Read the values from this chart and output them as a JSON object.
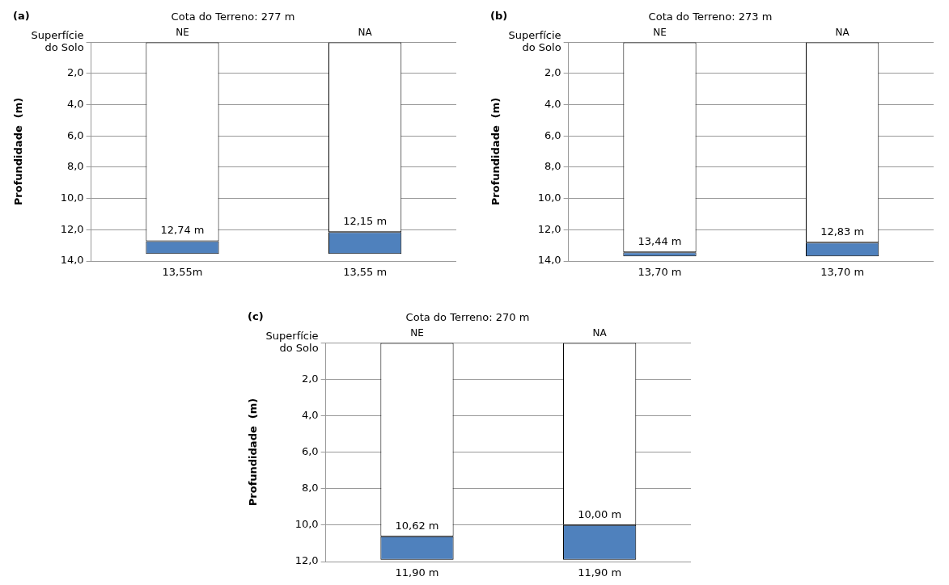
{
  "chart_data": [
    {
      "type": "bar",
      "stacked": true,
      "title": "Cota do Terreno: 277 m",
      "ylabel": "Profundidade  (m)",
      "annotations": [
        "(a)"
      ],
      "categories": [
        "NE",
        "NA"
      ],
      "grid": "y",
      "ylim": [
        14,
        0
      ],
      "yticks": [
        {
          "value": 0,
          "label": "Superfície\ndo Solo"
        },
        {
          "value": 2,
          "label": "2,0"
        },
        {
          "value": 4,
          "label": "4,0"
        },
        {
          "value": 6,
          "label": "6,0"
        },
        {
          "value": 8,
          "label": "8,0"
        },
        {
          "value": 10,
          "label": "10,0"
        },
        {
          "value": 12,
          "label": "12,0"
        },
        {
          "value": 14,
          "label": "14,0"
        }
      ],
      "series": [
        {
          "color": "#ffffff",
          "values": [
            12.74,
            12.15
          ],
          "value_labels": [
            "12,74 m",
            "12,15 m"
          ]
        },
        {
          "color": "#4f81bd",
          "values": [
            0.81,
            1.4
          ]
        }
      ],
      "totals": [
        "13,55m",
        "13,55 m"
      ]
    },
    {
      "type": "bar",
      "stacked": true,
      "title": "Cota do Terreno: 273 m",
      "ylabel": "Profundidade  (m)",
      "annotations": [
        "(b)"
      ],
      "categories": [
        "NE",
        "NA"
      ],
      "grid": "y",
      "ylim": [
        14,
        0
      ],
      "yticks": [
        {
          "value": 0,
          "label": "Superfície\ndo Solo"
        },
        {
          "value": 2,
          "label": "2,0"
        },
        {
          "value": 4,
          "label": "4,0"
        },
        {
          "value": 6,
          "label": "6,0"
        },
        {
          "value": 8,
          "label": "8,0"
        },
        {
          "value": 10,
          "label": "10,0"
        },
        {
          "value": 12,
          "label": "12,0"
        },
        {
          "value": 14,
          "label": "14,0"
        }
      ],
      "series": [
        {
          "color": "#ffffff",
          "values": [
            13.44,
            12.83
          ],
          "value_labels": [
            "13,44 m",
            "12,83 m"
          ]
        },
        {
          "color": "#4f81bd",
          "values": [
            0.26,
            0.87
          ]
        }
      ],
      "totals": [
        "13,70 m",
        "13,70 m"
      ]
    },
    {
      "type": "bar",
      "stacked": true,
      "title": "Cota do Terreno: 270 m",
      "ylabel": "Profundidade  (m)",
      "annotations": [
        "(c)"
      ],
      "categories": [
        "NE",
        "NA"
      ],
      "grid": "y",
      "ylim": [
        12,
        0
      ],
      "yticks": [
        {
          "value": 0,
          "label": "Superfície\ndo Solo"
        },
        {
          "value": 2,
          "label": "2,0"
        },
        {
          "value": 4,
          "label": "4,0"
        },
        {
          "value": 6,
          "label": "6,0"
        },
        {
          "value": 8,
          "label": "8,0"
        },
        {
          "value": 10,
          "label": "10,0"
        },
        {
          "value": 12,
          "label": "12,0"
        }
      ],
      "series": [
        {
          "color": "#ffffff",
          "values": [
            10.62,
            10.0
          ],
          "value_labels": [
            "10,62 m",
            "10,00 m"
          ]
        },
        {
          "color": "#4f81bd",
          "values": [
            1.28,
            1.9
          ]
        }
      ],
      "totals": [
        "11,90 m",
        "11,90 m"
      ]
    }
  ]
}
